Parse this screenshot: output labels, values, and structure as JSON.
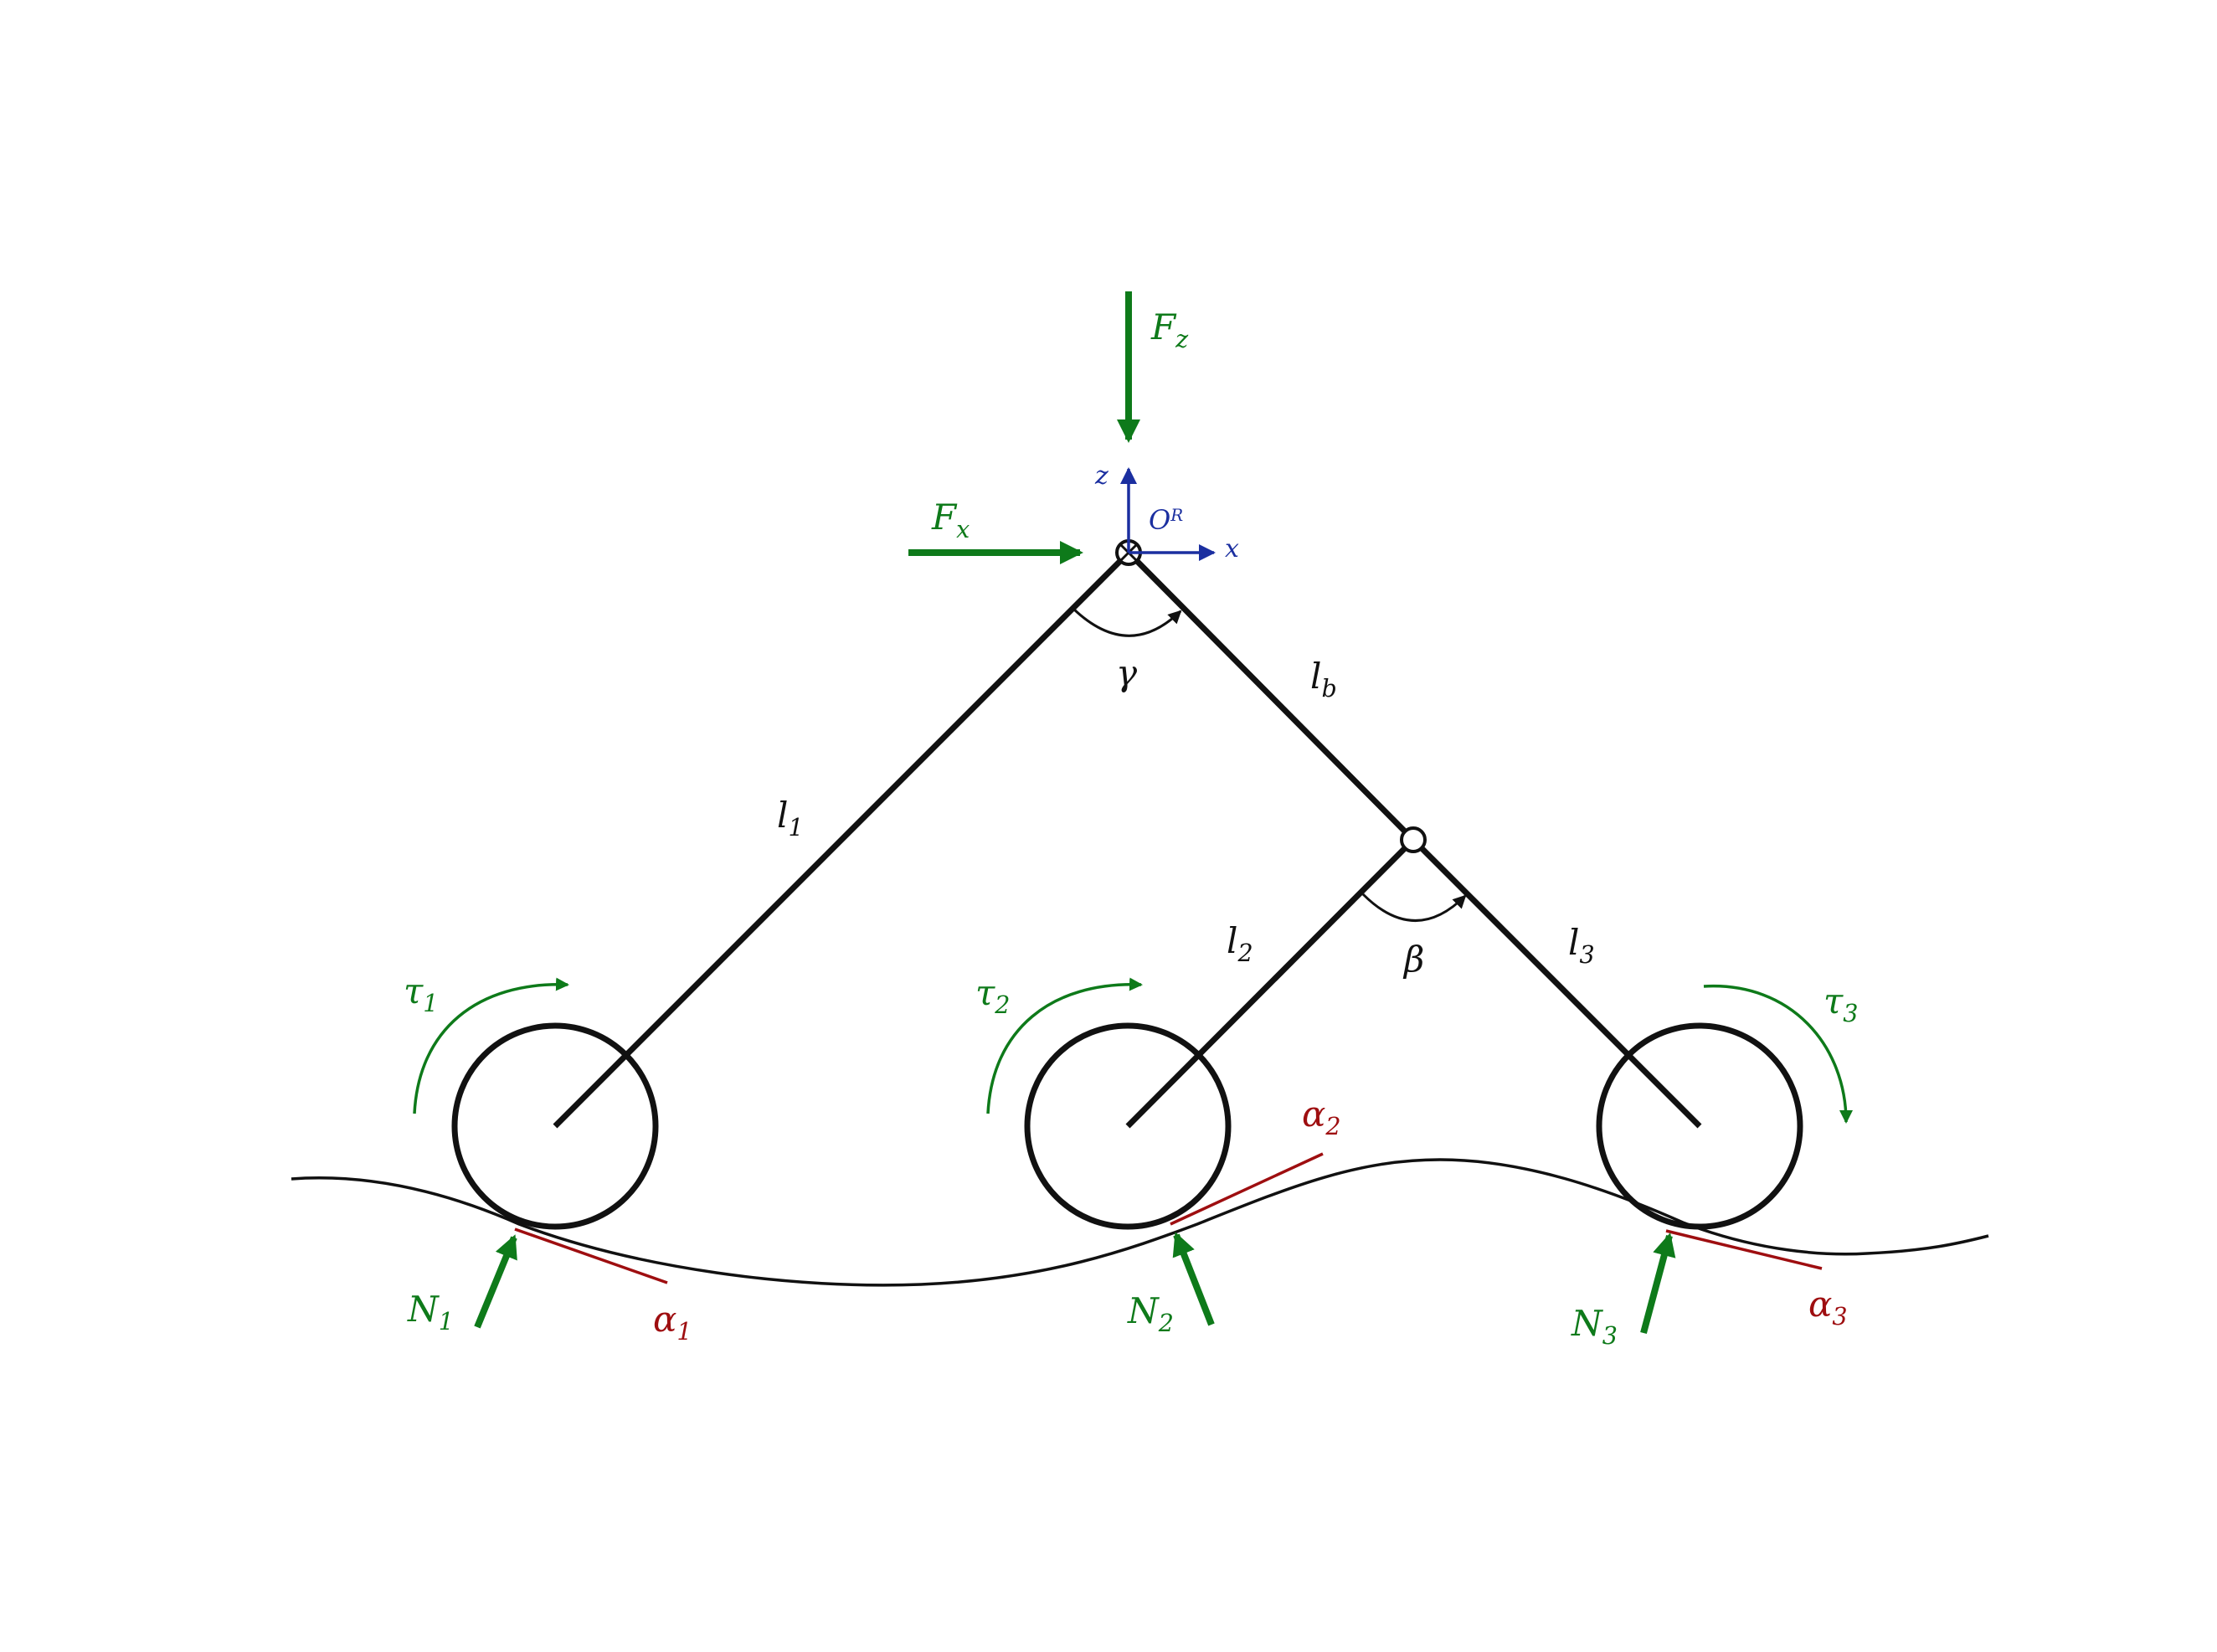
{
  "colors": {
    "structure": "#111111",
    "force": "#0e7a1a",
    "frame": "#1b2fa0",
    "tangent": "#9e0e10"
  },
  "labels": {
    "fz": {
      "base": "F",
      "sub": "z"
    },
    "fx": {
      "base": "F",
      "sub": "x"
    },
    "frame_origin": {
      "base": "O",
      "sup": "R"
    },
    "frame_x": "x",
    "frame_z": "z",
    "gamma": "γ",
    "beta": "β",
    "lb": {
      "base": "l",
      "sub": "b"
    },
    "l1": {
      "base": "l",
      "sub": "1"
    },
    "l2": {
      "base": "l",
      "sub": "2"
    },
    "l3": {
      "base": "l",
      "sub": "3"
    },
    "tau1": {
      "base": "τ",
      "sub": "1"
    },
    "tau2": {
      "base": "τ",
      "sub": "2"
    },
    "tau3": {
      "base": "τ",
      "sub": "3"
    },
    "n1": {
      "base": "N",
      "sub": "1"
    },
    "n2": {
      "base": "N",
      "sub": "2"
    },
    "n3": {
      "base": "N",
      "sub": "3"
    },
    "alpha1": {
      "base": "α",
      "sub": "1"
    },
    "alpha2": {
      "base": "α",
      "sub": "2"
    },
    "alpha3": {
      "base": "α",
      "sub": "3"
    }
  }
}
